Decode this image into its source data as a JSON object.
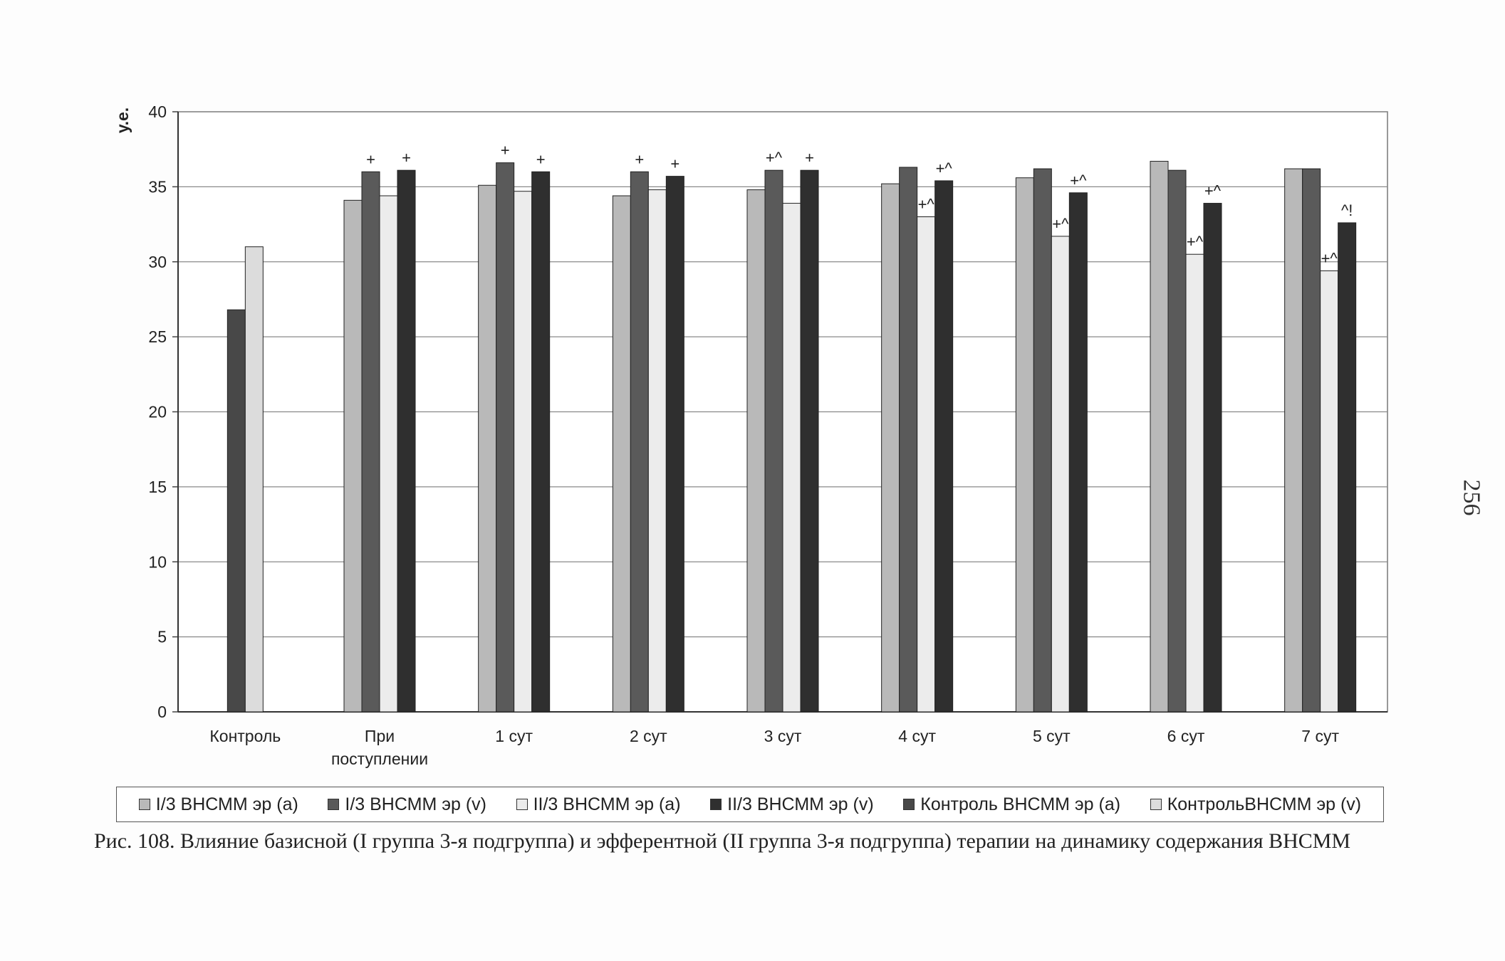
{
  "page_number": "256",
  "caption": "Рис. 108. Влияние базисной (I группа 3-я подгруппа) и эфферентной (II группа 3-я подгруппа) терапии на динамику содержания ВНСММ",
  "chart_data": {
    "type": "bar",
    "ylabel": "у.е.",
    "ylim": [
      0,
      40
    ],
    "yticks": [
      0,
      5,
      10,
      15,
      20,
      25,
      30,
      35,
      40
    ],
    "grid": true,
    "legend_position": "bottom",
    "categories": [
      "Контроль",
      "При поступлении",
      "1 сут",
      "2 сут",
      "3 сут",
      "4 сут",
      "5 сут",
      "6 сут",
      "7 сут"
    ],
    "category_labels": [
      [
        "Контроль"
      ],
      [
        "При",
        "поступлении"
      ],
      [
        "1 сут"
      ],
      [
        "2 сут"
      ],
      [
        "3 сут"
      ],
      [
        "4 сут"
      ],
      [
        "5 сут"
      ],
      [
        "6 сут"
      ],
      [
        "7 сут"
      ]
    ],
    "series": [
      {
        "name": "I/3 ВНСММ эр (а)",
        "color": "#b9b9b9",
        "values": [
          null,
          34.1,
          35.1,
          34.4,
          34.8,
          35.2,
          35.6,
          36.7,
          36.2
        ]
      },
      {
        "name": "I/3 ВНСММ эр (v)",
        "color": "#5a5a5a",
        "values": [
          null,
          36.0,
          36.6,
          36.0,
          36.1,
          36.3,
          36.2,
          36.1,
          36.2
        ]
      },
      {
        "name": "II/3 ВНСММ эр (а)",
        "color": "#ececec",
        "values": [
          null,
          34.4,
          34.7,
          34.8,
          33.9,
          33.0,
          31.7,
          30.5,
          29.4
        ]
      },
      {
        "name": "II/3 ВНСММ эр (v)",
        "color": "#2f2f2f",
        "values": [
          null,
          36.1,
          36.0,
          35.7,
          36.1,
          35.4,
          34.6,
          33.9,
          32.6
        ]
      },
      {
        "name": "Контроль ВНСММ эр (а)",
        "color": "#484848",
        "values": [
          26.8,
          null,
          null,
          null,
          null,
          null,
          null,
          null,
          null
        ]
      },
      {
        "name": "КонтрольВНСММ эр (v)",
        "color": "#dcdcdc",
        "values": [
          31.0,
          null,
          null,
          null,
          null,
          null,
          null,
          null,
          null
        ]
      }
    ],
    "annotations": [
      {
        "category": "При поступлении",
        "series": "I/3 ВНСММ эр (v)",
        "text": "+"
      },
      {
        "category": "При поступлении",
        "series": "II/3 ВНСММ эр (v)",
        "text": "+"
      },
      {
        "category": "1 сут",
        "series": "I/3 ВНСММ эр (v)",
        "text": "+"
      },
      {
        "category": "1 сут",
        "series": "II/3 ВНСММ эр (v)",
        "text": "+"
      },
      {
        "category": "2 сут",
        "series": "I/3 ВНСММ эр (v)",
        "text": "+"
      },
      {
        "category": "2 сут",
        "series": "II/3 ВНСММ эр (v)",
        "text": "+"
      },
      {
        "category": "3 сут",
        "series": "I/3 ВНСММ эр (v)",
        "text": "+^"
      },
      {
        "category": "3 сут",
        "series": "II/3 ВНСММ эр (v)",
        "text": "+"
      },
      {
        "category": "4 сут",
        "series": "II/3 ВНСММ эр (а)",
        "text": "+^"
      },
      {
        "category": "4 сут",
        "series": "II/3 ВНСММ эр (v)",
        "text": "+^"
      },
      {
        "category": "5 сут",
        "series": "II/3 ВНСММ эр (а)",
        "text": "+^"
      },
      {
        "category": "5 сут",
        "series": "II/3 ВНСММ эр (v)",
        "text": "+^"
      },
      {
        "category": "6 сут",
        "series": "II/3 ВНСММ эр (а)",
        "text": "+^"
      },
      {
        "category": "6 сут",
        "series": "II/3 ВНСММ эр (v)",
        "text": "+^"
      },
      {
        "category": "7 сут",
        "series": "II/3 ВНСММ эр (а)",
        "text": "+^"
      },
      {
        "category": "7 сут",
        "series": "II/3 ВНСММ эр (v)",
        "text": "^!"
      }
    ]
  }
}
